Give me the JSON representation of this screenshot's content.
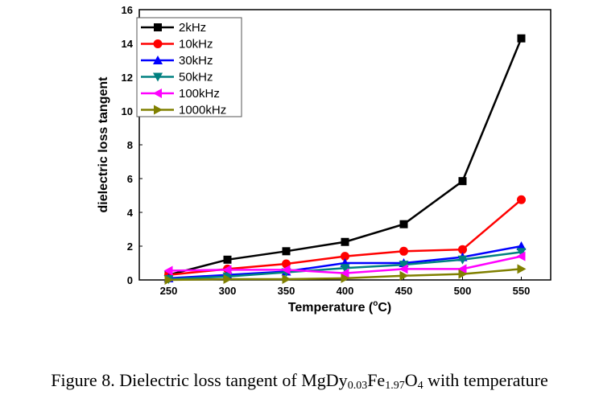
{
  "chart_data": {
    "type": "line",
    "title": "",
    "xlabel": "Temperature (°C)",
    "xlabel_main": "Temperature (",
    "xlabel_sup": "o",
    "xlabel_unit": "C)",
    "ylabel": "dielectric loss tangent",
    "x": [
      250,
      300,
      350,
      400,
      450,
      500,
      550
    ],
    "xticks": [
      "250",
      "300",
      "350",
      "400",
      "450",
      "500",
      "550"
    ],
    "yticks": [
      "0",
      "2",
      "4",
      "6",
      "8",
      "10",
      "12",
      "14",
      "16"
    ],
    "xlim": [
      225,
      575
    ],
    "ylim": [
      0,
      16
    ],
    "grid": false,
    "legend_position": "top-left",
    "series": [
      {
        "name": "2kHz",
        "color": "#000000",
        "marker": "square",
        "values": [
          0.3,
          1.2,
          1.7,
          2.25,
          3.3,
          5.85,
          14.3
        ]
      },
      {
        "name": "10kHz",
        "color": "#ff0000",
        "marker": "circle",
        "values": [
          0.3,
          0.65,
          0.95,
          1.4,
          1.7,
          1.8,
          4.75
        ]
      },
      {
        "name": "30kHz",
        "color": "#0000ff",
        "marker": "triangle-up",
        "values": [
          0.1,
          0.3,
          0.5,
          1.0,
          1.0,
          1.35,
          2.0
        ]
      },
      {
        "name": "50kHz",
        "color": "#008080",
        "marker": "triangle-down",
        "values": [
          0.05,
          0.2,
          0.45,
          0.7,
          0.9,
          1.2,
          1.65
        ]
      },
      {
        "name": "100kHz",
        "color": "#ff00ff",
        "marker": "triangle-left",
        "values": [
          0.55,
          0.6,
          0.6,
          0.4,
          0.65,
          0.65,
          1.4
        ]
      },
      {
        "name": "1000kHz",
        "color": "#808000",
        "marker": "triangle-right",
        "values": [
          0.0,
          0.05,
          0.05,
          0.1,
          0.25,
          0.35,
          0.65
        ]
      }
    ]
  },
  "caption": {
    "prefix": "Figure 8. Dielectric loss tangent of MgDy",
    "sub1": "0.03",
    "mid1": "Fe",
    "sub2": "1.97",
    "mid2": "O",
    "sub3": "4",
    "suffix": " with temperature"
  }
}
